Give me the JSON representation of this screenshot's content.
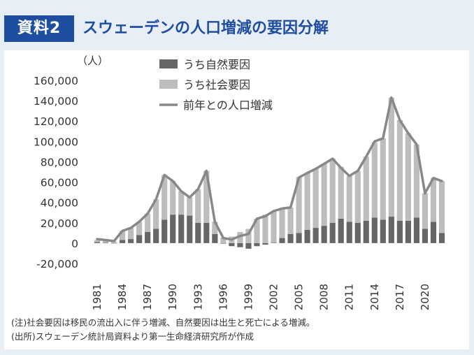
{
  "header": {
    "badge": "資料2",
    "title": "スウェーデンの人口増減の要因分解"
  },
  "notes": {
    "line1": "(注)社会要因は移民の流出入に伴う増減、自然要因は出生と死亡による増減。",
    "line2": "(出所)スウェーデン統計局資料より第一生命経済研究所が作成"
  },
  "chart_data": {
    "type": "bar",
    "stacked": true,
    "unit_label": "（人）",
    "years": [
      1981,
      1982,
      1983,
      1984,
      1985,
      1986,
      1987,
      1988,
      1989,
      1990,
      1991,
      1992,
      1993,
      1994,
      1995,
      1996,
      1997,
      1998,
      1999,
      2000,
      2001,
      2002,
      2003,
      2004,
      2005,
      2006,
      2007,
      2008,
      2009,
      2010,
      2011,
      2012,
      2013,
      2014,
      2015,
      2016,
      2017,
      2018,
      2019,
      2020,
      2021,
      2022
    ],
    "x_tick_labels": [
      "1981",
      "1984",
      "1987",
      "1990",
      "1993",
      "1996",
      "1999",
      "2002",
      "2005",
      "2008",
      "2011",
      "2014",
      "2017",
      "2020"
    ],
    "ylim": [
      -20000,
      160000
    ],
    "y_ticks": [
      160000,
      140000,
      120000,
      100000,
      80000,
      60000,
      40000,
      20000,
      0,
      -20000
    ],
    "y_tick_labels": [
      "160,000",
      "140,000",
      "120,000",
      "100,000",
      "80,000",
      "60,000",
      "40,000",
      "20,000",
      "0",
      "-20,000"
    ],
    "series": [
      {
        "name": "うち自然要因",
        "color": "#666666",
        "values": [
          1000,
          500,
          -200,
          3000,
          4000,
          8000,
          11000,
          14000,
          23000,
          28000,
          28000,
          27000,
          20000,
          20000,
          9000,
          -500,
          -3000,
          -4000,
          -5500,
          -3000,
          -1500,
          500,
          5000,
          9000,
          10000,
          13000,
          15000,
          17000,
          20000,
          24000,
          21000,
          20000,
          22000,
          25000,
          23000,
          26000,
          22000,
          22000,
          25000,
          14000,
          21000,
          10000
        ]
      },
      {
        "name": "うち社会要因",
        "color": "#bdbdbd",
        "values": [
          2000,
          1500,
          1500,
          9000,
          11000,
          13000,
          18000,
          29000,
          44000,
          33000,
          23000,
          18000,
          33000,
          51000,
          12000,
          5500,
          6500,
          11000,
          14000,
          24000,
          28000,
          31000,
          29000,
          26000,
          55000,
          56000,
          58000,
          61000,
          63000,
          51000,
          45000,
          51000,
          63000,
          74000,
          80000,
          117000,
          99000,
          86000,
          72000,
          35000,
          43000,
          51000
        ]
      }
    ],
    "line_series": {
      "name": "前年との人口増減",
      "color": "#888888",
      "values": [
        4000,
        3000,
        2000,
        12000,
        15000,
        21000,
        29000,
        43000,
        67000,
        61000,
        51000,
        45000,
        53000,
        71000,
        21000,
        5000,
        3500,
        7000,
        9000,
        24000,
        26500,
        31500,
        34000,
        35000,
        64500,
        69000,
        73000,
        78000,
        83000,
        74000,
        66000,
        71000,
        85000,
        100000,
        103000,
        143000,
        121000,
        108000,
        97000,
        49000,
        64000,
        61000
      ]
    },
    "grid": false,
    "legend_position": "top"
  }
}
